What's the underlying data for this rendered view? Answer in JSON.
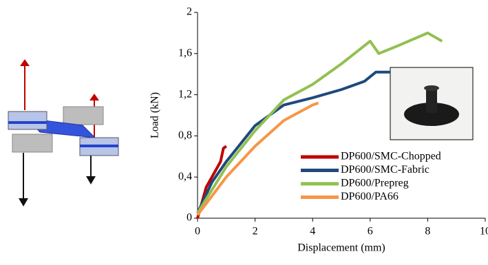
{
  "chart_data": {
    "type": "line",
    "x_label": "Displacement (mm)",
    "y_label": "Load (kN)",
    "xlim": [
      0,
      10
    ],
    "xticks": [
      0,
      2,
      4,
      6,
      8,
      10
    ],
    "ylim": [
      0,
      2
    ],
    "yticks": [
      0,
      {
        "value": 0.4,
        "label": "0,4"
      },
      {
        "value": 0.8,
        "label": "0,8"
      },
      {
        "value": 1.2,
        "label": "1,2"
      },
      {
        "value": 1.6,
        "label": "1,6"
      },
      2
    ],
    "legend": "lower right",
    "series": [
      {
        "name": "DP600/SMC-Chopped",
        "color": "#c00000",
        "x": [
          0,
          0.3,
          0.6,
          0.8,
          0.9,
          1.0
        ],
        "values": [
          0,
          0.3,
          0.45,
          0.55,
          0.68,
          0.7
        ]
      },
      {
        "name": "DP600/SMC-Fabric",
        "color": "#1f497d",
        "x": [
          0,
          0.5,
          1,
          2,
          3,
          4,
          5,
          5.8,
          6.2,
          6.7
        ],
        "values": [
          0.05,
          0.35,
          0.55,
          0.9,
          1.1,
          1.17,
          1.25,
          1.33,
          1.42,
          1.42
        ]
      },
      {
        "name": "DP600/Prepreg",
        "color": "#92c050",
        "x": [
          0,
          1,
          2,
          3,
          4,
          5,
          6,
          6.3,
          7,
          8,
          8.5
        ],
        "values": [
          0.05,
          0.5,
          0.85,
          1.15,
          1.3,
          1.5,
          1.72,
          1.6,
          1.68,
          1.8,
          1.72
        ]
      },
      {
        "name": "DP600/PA66",
        "color": "#f79646",
        "x": [
          0,
          1,
          2,
          3,
          4,
          4.2
        ],
        "values": [
          0.03,
          0.4,
          0.7,
          0.95,
          1.1,
          1.12
        ]
      }
    ]
  }
}
